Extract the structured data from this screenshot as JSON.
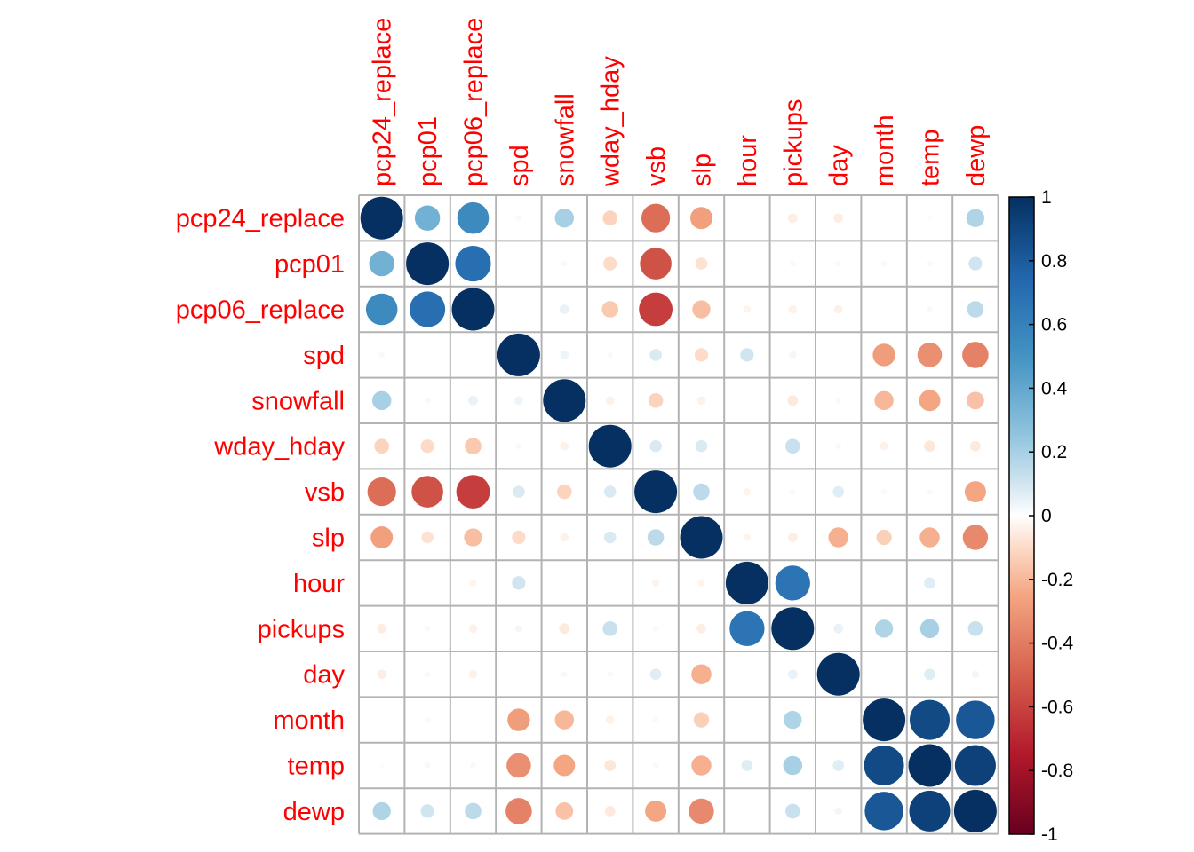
{
  "chart_data": {
    "type": "heatmap",
    "style": "circle correlation matrix",
    "title": "",
    "variables": [
      "pcp24_replace",
      "pcp01",
      "pcp06_replace",
      "spd",
      "snowfall",
      "wday_hday",
      "vsb",
      "slp",
      "hour",
      "pickups",
      "day",
      "month",
      "temp",
      "dewp"
    ],
    "values": [
      [
        1.0,
        0.35,
        0.55,
        0.02,
        0.2,
        -0.12,
        -0.45,
        -0.27,
        0.0,
        -0.05,
        -0.05,
        0.0,
        0.01,
        0.18
      ],
      [
        0.35,
        1.0,
        0.7,
        0.0,
        0.02,
        -0.1,
        -0.55,
        -0.08,
        0.0,
        0.02,
        0.02,
        0.02,
        0.02,
        0.1
      ],
      [
        0.55,
        0.7,
        1.0,
        0.0,
        0.05,
        -0.15,
        -0.62,
        -0.18,
        -0.03,
        -0.04,
        -0.04,
        0.0,
        0.02,
        0.15
      ],
      [
        0.02,
        0.0,
        0.0,
        1.0,
        0.04,
        0.02,
        0.08,
        -0.1,
        0.1,
        0.03,
        0.0,
        -0.28,
        -0.33,
        -0.38
      ],
      [
        0.2,
        0.02,
        0.05,
        0.04,
        1.0,
        -0.04,
        -0.12,
        -0.04,
        0.0,
        -0.06,
        0.02,
        -0.2,
        -0.25,
        -0.17
      ],
      [
        -0.12,
        -0.1,
        -0.15,
        0.02,
        -0.04,
        1.0,
        0.08,
        0.08,
        0.0,
        0.12,
        0.02,
        -0.04,
        -0.07,
        -0.06
      ],
      [
        -0.45,
        -0.55,
        -0.62,
        0.08,
        -0.12,
        0.08,
        1.0,
        0.15,
        -0.03,
        -0.02,
        0.07,
        -0.02,
        0.02,
        -0.25
      ],
      [
        -0.27,
        -0.08,
        -0.18,
        -0.1,
        -0.04,
        0.08,
        0.15,
        1.0,
        -0.03,
        -0.05,
        -0.22,
        -0.13,
        -0.22,
        -0.35
      ],
      [
        0.0,
        0.0,
        -0.03,
        0.1,
        0.0,
        0.0,
        -0.03,
        -0.03,
        1.0,
        0.67,
        0.0,
        0.0,
        0.07,
        0.0
      ],
      [
        -0.05,
        0.02,
        -0.04,
        0.03,
        -0.06,
        0.12,
        -0.02,
        -0.05,
        0.67,
        1.0,
        0.05,
        0.18,
        0.2,
        0.12
      ],
      [
        -0.05,
        0.02,
        -0.04,
        0.0,
        0.02,
        0.02,
        0.07,
        -0.22,
        0.0,
        0.05,
        1.0,
        0.0,
        0.07,
        0.03
      ],
      [
        0.0,
        0.02,
        0.0,
        -0.28,
        -0.2,
        -0.04,
        -0.02,
        -0.13,
        0.0,
        0.18,
        0.0,
        1.0,
        0.88,
        0.82
      ],
      [
        0.01,
        0.02,
        0.02,
        -0.33,
        -0.25,
        -0.07,
        0.02,
        -0.22,
        0.07,
        0.2,
        0.07,
        0.88,
        1.0,
        0.92
      ],
      [
        0.18,
        0.1,
        0.15,
        -0.38,
        -0.17,
        -0.06,
        -0.25,
        -0.35,
        0.0,
        0.12,
        0.03,
        0.82,
        0.92,
        1.0
      ]
    ],
    "color_scale": {
      "range": [
        -1,
        1
      ],
      "stops": [
        {
          "value": -1.0,
          "color": "#67001f"
        },
        {
          "value": -0.75,
          "color": "#b2182b"
        },
        {
          "value": -0.5,
          "color": "#d6604d"
        },
        {
          "value": -0.25,
          "color": "#f4a582"
        },
        {
          "value": -0.1,
          "color": "#fddbc7"
        },
        {
          "value": 0.0,
          "color": "#ffffff"
        },
        {
          "value": 0.1,
          "color": "#d1e5f0"
        },
        {
          "value": 0.25,
          "color": "#92c5de"
        },
        {
          "value": 0.5,
          "color": "#4393c3"
        },
        {
          "value": 0.75,
          "color": "#2166ac"
        },
        {
          "value": 1.0,
          "color": "#053061"
        }
      ],
      "ticks": [
        "1",
        "0.8",
        "0.6",
        "0.4",
        "0.2",
        "0",
        "-0.2",
        "-0.4",
        "-0.6",
        "-0.8",
        "-1"
      ]
    },
    "label_color": "#ff0000",
    "grid_color": "#b3b3b3",
    "grid": true,
    "legend": "right colorbar"
  }
}
